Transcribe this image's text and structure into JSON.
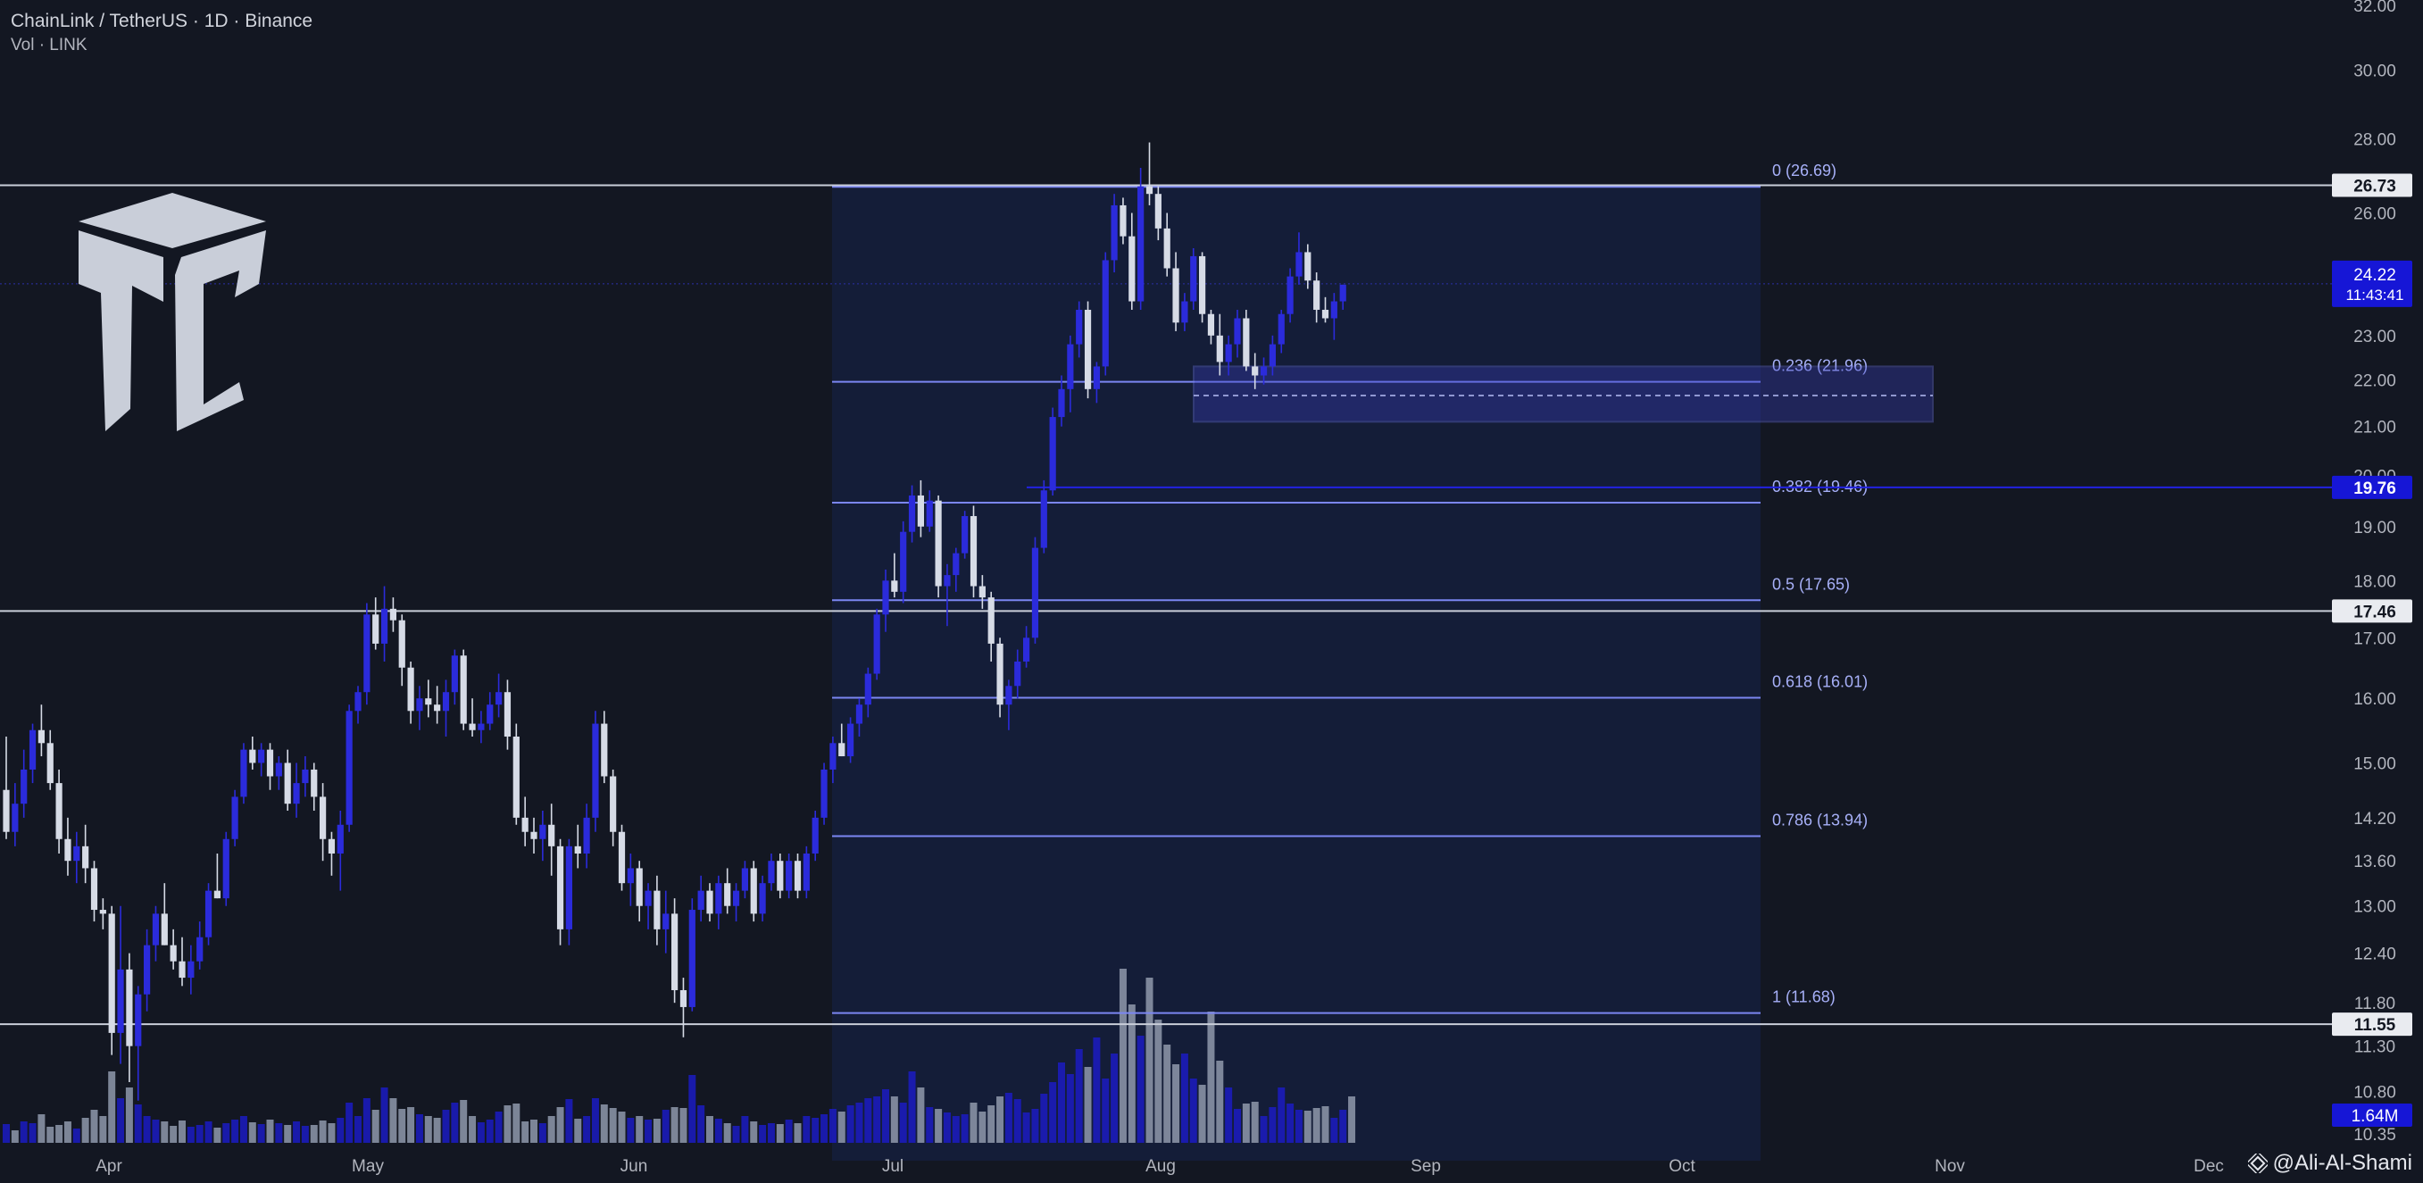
{
  "header": {
    "title": "ChainLink / TetherUS · 1D · Binance",
    "subtitle": "Vol · LINK"
  },
  "watermark": {
    "icon": "binance-diamond-icon",
    "text": "Ali-Al-Shami"
  },
  "logo": {
    "icon": "cube-tc-logo-icon"
  },
  "colors": {
    "background": "#131722",
    "zone_background": "#16224a",
    "bull_candle": "#2b2bdb",
    "bear_candle": "#d6dbe6",
    "vol_up": "#1b1bc2",
    "vol_down": "#8f99ab",
    "fib_line": "#7b86f2",
    "fib_text": "#a7b0f8",
    "horizontal_line": "#c9ced9",
    "current_price_tag": "#1616d6",
    "axis_text": "#b2b5be"
  },
  "chart_data": {
    "type": "candlestick",
    "title": "ChainLink / TetherUS · 1D · Binance",
    "y_axis": {
      "scale": "log",
      "ylim": [
        10.35,
        32.0
      ],
      "ticks": [
        "32.00",
        "30.00",
        "28.00",
        "26.00",
        "23.00",
        "22.00",
        "21.00",
        "20.00",
        "19.00",
        "18.00",
        "17.00",
        "16.00",
        "15.00",
        "14.20",
        "13.60",
        "13.00",
        "12.40",
        "11.80",
        "11.30",
        "10.80",
        "10.35"
      ]
    },
    "x_axis": {
      "ticks": [
        "Apr",
        "May",
        "Jun",
        "Jul",
        "Aug",
        "Sep",
        "Oct",
        "Nov",
        "Dec"
      ],
      "first_candle_date": "2024-03-20"
    },
    "candles": [
      [
        14.6,
        15.4,
        13.9,
        14.0
      ],
      [
        14.0,
        14.7,
        13.8,
        14.4
      ],
      [
        14.4,
        15.2,
        14.2,
        14.9
      ],
      [
        14.9,
        15.6,
        14.7,
        15.5
      ],
      [
        15.5,
        15.9,
        15.1,
        15.3
      ],
      [
        15.3,
        15.5,
        14.6,
        14.7
      ],
      [
        14.7,
        14.9,
        13.7,
        13.9
      ],
      [
        13.9,
        14.2,
        13.4,
        13.6
      ],
      [
        13.6,
        14.0,
        13.3,
        13.8
      ],
      [
        13.8,
        14.1,
        13.3,
        13.5
      ],
      [
        13.5,
        13.6,
        12.8,
        12.95
      ],
      [
        12.95,
        13.1,
        12.7,
        12.9
      ],
      [
        12.9,
        13.0,
        11.2,
        11.45
      ],
      [
        11.45,
        13.0,
        11.1,
        12.2
      ],
      [
        12.2,
        12.4,
        10.9,
        11.3
      ],
      [
        11.3,
        12.0,
        10.7,
        11.9
      ],
      [
        11.9,
        12.7,
        11.7,
        12.5
      ],
      [
        12.5,
        13.0,
        12.3,
        12.9
      ],
      [
        12.9,
        13.3,
        12.5,
        12.5
      ],
      [
        12.5,
        12.7,
        12.2,
        12.3
      ],
      [
        12.3,
        12.6,
        12.0,
        12.1
      ],
      [
        12.1,
        12.5,
        11.9,
        12.3
      ],
      [
        12.3,
        12.8,
        12.2,
        12.6
      ],
      [
        12.6,
        13.3,
        12.5,
        13.2
      ],
      [
        13.2,
        13.7,
        13.1,
        13.1
      ],
      [
        13.1,
        14.0,
        13.0,
        13.9
      ],
      [
        13.9,
        14.6,
        13.8,
        14.5
      ],
      [
        14.5,
        15.3,
        14.4,
        15.2
      ],
      [
        15.2,
        15.4,
        14.9,
        15.0
      ],
      [
        15.0,
        15.3,
        14.8,
        15.2
      ],
      [
        15.2,
        15.3,
        14.6,
        14.8
      ],
      [
        14.8,
        15.1,
        14.6,
        15.0
      ],
      [
        15.0,
        15.2,
        14.3,
        14.4
      ],
      [
        14.4,
        15.0,
        14.2,
        14.7
      ],
      [
        14.7,
        15.1,
        14.5,
        14.9
      ],
      [
        14.9,
        15.0,
        14.3,
        14.5
      ],
      [
        14.5,
        14.7,
        13.6,
        13.9
      ],
      [
        13.9,
        14.0,
        13.4,
        13.7
      ],
      [
        13.7,
        14.3,
        13.2,
        14.1
      ],
      [
        14.1,
        15.9,
        14.0,
        15.8
      ],
      [
        15.8,
        16.2,
        15.6,
        16.1
      ],
      [
        16.1,
        17.6,
        15.9,
        17.4
      ],
      [
        17.4,
        17.7,
        16.8,
        16.9
      ],
      [
        16.9,
        17.9,
        16.6,
        17.5
      ],
      [
        17.5,
        17.7,
        17.1,
        17.3
      ],
      [
        17.3,
        17.4,
        16.2,
        16.5
      ],
      [
        16.5,
        16.6,
        15.6,
        15.8
      ],
      [
        15.8,
        16.2,
        15.5,
        16.0
      ],
      [
        16.0,
        16.3,
        15.7,
        15.9
      ],
      [
        15.9,
        16.2,
        15.6,
        15.8
      ],
      [
        15.8,
        16.3,
        15.4,
        16.1
      ],
      [
        16.1,
        16.8,
        15.9,
        16.7
      ],
      [
        16.7,
        16.8,
        15.5,
        15.6
      ],
      [
        15.6,
        16.0,
        15.4,
        15.5
      ],
      [
        15.5,
        15.8,
        15.3,
        15.6
      ],
      [
        15.6,
        16.1,
        15.5,
        15.9
      ],
      [
        15.9,
        16.4,
        15.7,
        16.1
      ],
      [
        16.1,
        16.3,
        15.2,
        15.4
      ],
      [
        15.4,
        15.6,
        14.1,
        14.2
      ],
      [
        14.2,
        14.5,
        13.8,
        14.0
      ],
      [
        14.0,
        14.2,
        13.7,
        13.9
      ],
      [
        13.9,
        14.3,
        13.6,
        14.1
      ],
      [
        14.1,
        14.4,
        13.4,
        13.8
      ],
      [
        13.8,
        13.9,
        12.5,
        12.7
      ],
      [
        12.7,
        13.9,
        12.5,
        13.8
      ],
      [
        13.8,
        14.1,
        13.5,
        13.7
      ],
      [
        13.7,
        14.4,
        13.5,
        14.2
      ],
      [
        14.2,
        15.8,
        14.0,
        15.6
      ],
      [
        15.6,
        15.8,
        14.7,
        14.8
      ],
      [
        14.8,
        14.9,
        13.8,
        14.0
      ],
      [
        14.0,
        14.1,
        13.2,
        13.3
      ],
      [
        13.3,
        13.7,
        13.0,
        13.5
      ],
      [
        13.5,
        13.6,
        12.8,
        13.0
      ],
      [
        13.0,
        13.3,
        12.7,
        13.2
      ],
      [
        13.2,
        13.4,
        12.5,
        12.7
      ],
      [
        12.7,
        13.2,
        12.4,
        12.9
      ],
      [
        12.9,
        13.1,
        11.8,
        11.95
      ],
      [
        11.95,
        12.1,
        11.4,
        11.75
      ],
      [
        11.75,
        13.1,
        11.7,
        12.95
      ],
      [
        12.95,
        13.4,
        12.8,
        13.2
      ],
      [
        13.2,
        13.3,
        12.8,
        12.9
      ],
      [
        12.9,
        13.4,
        12.7,
        13.3
      ],
      [
        13.3,
        13.5,
        12.9,
        13.0
      ],
      [
        13.0,
        13.3,
        12.8,
        13.2
      ],
      [
        13.2,
        13.6,
        13.1,
        13.5
      ],
      [
        13.5,
        13.6,
        12.8,
        12.9
      ],
      [
        12.9,
        13.4,
        12.8,
        13.3
      ],
      [
        13.3,
        13.7,
        13.2,
        13.6
      ],
      [
        13.6,
        13.7,
        13.1,
        13.2
      ],
      [
        13.2,
        13.7,
        13.1,
        13.6
      ],
      [
        13.6,
        13.7,
        13.1,
        13.2
      ],
      [
        13.2,
        13.8,
        13.1,
        13.7
      ],
      [
        13.7,
        14.3,
        13.6,
        14.2
      ],
      [
        14.2,
        15.0,
        14.1,
        14.9
      ],
      [
        14.9,
        15.4,
        14.7,
        15.3
      ],
      [
        15.3,
        15.6,
        15.1,
        15.1
      ],
      [
        15.1,
        15.7,
        15.0,
        15.6
      ],
      [
        15.6,
        16.0,
        15.4,
        15.9
      ],
      [
        15.9,
        16.5,
        15.7,
        16.4
      ],
      [
        16.4,
        17.5,
        16.3,
        17.4
      ],
      [
        17.4,
        18.2,
        17.1,
        18.0
      ],
      [
        18.0,
        18.5,
        17.7,
        17.8
      ],
      [
        17.8,
        19.1,
        17.6,
        18.9
      ],
      [
        18.9,
        19.8,
        18.7,
        19.6
      ],
      [
        19.6,
        19.9,
        18.8,
        19.0
      ],
      [
        19.0,
        19.7,
        18.9,
        19.5
      ],
      [
        19.5,
        19.6,
        17.7,
        17.9
      ],
      [
        17.9,
        18.3,
        17.2,
        18.1
      ],
      [
        18.1,
        18.6,
        17.8,
        18.5
      ],
      [
        18.5,
        19.3,
        18.4,
        19.2
      ],
      [
        19.2,
        19.4,
        17.7,
        17.9
      ],
      [
        17.9,
        18.1,
        17.5,
        17.7
      ],
      [
        17.7,
        17.8,
        16.6,
        16.9
      ],
      [
        16.9,
        17.0,
        15.7,
        15.9
      ],
      [
        15.9,
        16.3,
        15.5,
        16.2
      ],
      [
        16.2,
        16.8,
        16.0,
        16.6
      ],
      [
        16.6,
        17.2,
        16.5,
        17.0
      ],
      [
        17.0,
        18.8,
        16.9,
        18.6
      ],
      [
        18.6,
        19.9,
        18.5,
        19.7
      ],
      [
        19.7,
        21.4,
        19.6,
        21.2
      ],
      [
        21.2,
        22.1,
        21.0,
        21.8
      ],
      [
        21.8,
        23.0,
        21.3,
        22.8
      ],
      [
        22.8,
        23.8,
        22.5,
        23.6
      ],
      [
        23.6,
        23.8,
        21.6,
        21.8
      ],
      [
        21.8,
        22.4,
        21.5,
        22.3
      ],
      [
        22.3,
        25.0,
        22.1,
        24.8
      ],
      [
        24.8,
        26.5,
        24.5,
        26.2
      ],
      [
        26.2,
        26.4,
        25.2,
        25.4
      ],
      [
        25.4,
        26.0,
        23.6,
        23.8
      ],
      [
        23.8,
        27.2,
        23.6,
        26.7
      ],
      [
        26.7,
        27.9,
        26.2,
        26.5
      ],
      [
        26.5,
        26.7,
        25.3,
        25.6
      ],
      [
        25.6,
        26.0,
        24.4,
        24.6
      ],
      [
        24.6,
        25.0,
        23.1,
        23.3
      ],
      [
        23.3,
        24.0,
        23.1,
        23.8
      ],
      [
        23.8,
        25.1,
        23.6,
        24.9
      ],
      [
        24.9,
        25.0,
        23.3,
        23.5
      ],
      [
        23.5,
        23.6,
        22.8,
        23.0
      ],
      [
        23.0,
        23.5,
        22.1,
        22.4
      ],
      [
        22.4,
        23.0,
        22.1,
        22.8
      ],
      [
        22.8,
        23.6,
        22.5,
        23.4
      ],
      [
        23.4,
        23.6,
        22.2,
        22.3
      ],
      [
        22.3,
        22.6,
        21.8,
        22.1
      ],
      [
        22.1,
        22.5,
        21.9,
        22.3
      ],
      [
        22.3,
        23.0,
        22.1,
        22.8
      ],
      [
        22.8,
        23.6,
        22.6,
        23.5
      ],
      [
        23.5,
        24.6,
        23.3,
        24.4
      ],
      [
        24.4,
        25.5,
        24.2,
        25.0
      ],
      [
        25.0,
        25.2,
        24.1,
        24.3
      ],
      [
        24.3,
        24.5,
        23.3,
        23.6
      ],
      [
        23.6,
        23.9,
        23.3,
        23.4
      ],
      [
        23.4,
        24.0,
        22.9,
        23.8
      ],
      [
        23.8,
        24.2,
        23.6,
        24.2
      ]
    ],
    "volume_up": [
      true,
      false,
      true,
      true,
      false,
      false,
      false,
      false,
      true,
      false,
      false,
      false,
      false,
      true,
      false,
      true,
      true,
      true,
      false,
      false,
      false,
      true,
      true,
      true,
      false,
      true,
      true,
      true,
      false,
      true,
      false,
      true,
      false,
      true,
      true,
      false,
      false,
      false,
      true,
      true,
      true,
      true,
      false,
      true,
      false,
      false,
      false,
      true,
      false,
      false,
      true,
      true,
      false,
      false,
      true,
      true,
      true,
      false,
      false,
      false,
      false,
      true,
      false,
      false,
      true,
      false,
      true,
      true,
      false,
      false,
      false,
      true,
      false,
      true,
      false,
      true,
      false,
      false,
      true,
      true,
      false,
      true,
      false,
      true,
      true,
      false,
      true,
      true,
      false,
      true,
      false,
      true,
      true,
      true,
      true,
      false,
      true,
      true,
      true,
      true,
      true,
      false,
      true,
      true,
      false,
      true,
      false,
      true,
      true,
      true,
      false,
      false,
      false,
      false,
      true,
      true,
      true,
      true,
      true,
      true,
      true,
      true,
      true,
      false,
      true,
      true,
      true,
      false,
      false,
      true,
      false,
      false,
      false,
      false,
      true,
      true,
      false,
      false,
      false,
      true,
      true,
      false,
      false,
      true,
      true,
      true,
      true,
      true,
      false,
      false,
      false,
      true,
      true
    ],
    "volume_ratio": [
      0.21,
      0.14,
      0.24,
      0.22,
      0.32,
      0.18,
      0.2,
      0.24,
      0.16,
      0.28,
      0.37,
      0.3,
      0.8,
      0.5,
      0.62,
      0.43,
      0.3,
      0.26,
      0.24,
      0.19,
      0.25,
      0.18,
      0.2,
      0.24,
      0.17,
      0.22,
      0.26,
      0.3,
      0.23,
      0.21,
      0.26,
      0.22,
      0.2,
      0.24,
      0.19,
      0.2,
      0.25,
      0.22,
      0.28,
      0.45,
      0.3,
      0.5,
      0.37,
      0.62,
      0.5,
      0.38,
      0.4,
      0.32,
      0.3,
      0.28,
      0.37,
      0.45,
      0.48,
      0.3,
      0.23,
      0.26,
      0.35,
      0.42,
      0.44,
      0.24,
      0.26,
      0.22,
      0.3,
      0.4,
      0.49,
      0.27,
      0.3,
      0.5,
      0.43,
      0.39,
      0.35,
      0.28,
      0.3,
      0.26,
      0.27,
      0.37,
      0.4,
      0.39,
      0.76,
      0.42,
      0.3,
      0.27,
      0.22,
      0.19,
      0.3,
      0.24,
      0.2,
      0.22,
      0.21,
      0.26,
      0.22,
      0.3,
      0.28,
      0.32,
      0.38,
      0.35,
      0.42,
      0.45,
      0.5,
      0.52,
      0.6,
      0.52,
      0.45,
      0.8,
      0.62,
      0.4,
      0.38,
      0.34,
      0.3,
      0.32,
      0.45,
      0.35,
      0.42,
      0.52,
      0.56,
      0.49,
      0.34,
      0.38,
      0.55,
      0.68,
      0.9,
      0.77,
      1.05,
      0.85,
      1.18,
      0.72,
      1.0,
      1.95,
      1.55,
      1.2,
      1.85,
      1.38,
      1.1,
      0.88,
      1.0,
      0.72,
      0.65,
      1.47,
      0.92,
      0.62,
      0.38,
      0.44,
      0.46,
      0.3,
      0.4,
      0.62,
      0.44,
      0.37,
      0.36,
      0.39,
      0.41,
      0.28,
      0.37,
      0.52
    ],
    "volume_scale_label": "1.64M",
    "fibonacci": {
      "levels": [
        {
          "label": "0 (26.69)",
          "price": 26.69
        },
        {
          "label": "0.236 (21.96)",
          "price": 21.96
        },
        {
          "label": "0.382 (19.46)",
          "price": 19.46
        },
        {
          "label": "0.5 (17.65)",
          "price": 17.65
        },
        {
          "label": "0.618 (16.01)",
          "price": 16.01
        },
        {
          "label": "0.786 (13.94)",
          "price": 13.94
        },
        {
          "label": "1 (11.68)",
          "price": 11.68
        }
      ]
    },
    "horizontal_lines": [
      {
        "price": 26.73,
        "label": "26.73",
        "style": "white"
      },
      {
        "price": 17.46,
        "label": "17.46",
        "style": "white"
      },
      {
        "price": 11.55,
        "label": "11.55",
        "style": "white"
      },
      {
        "price": 19.76,
        "label": "19.76",
        "style": "blue"
      }
    ],
    "support_zone": {
      "top": 22.3,
      "bottom": 21.1,
      "mid": 21.66
    },
    "current_price": {
      "price": 24.22,
      "label": "24.22",
      "countdown": "11:43:41"
    }
  }
}
